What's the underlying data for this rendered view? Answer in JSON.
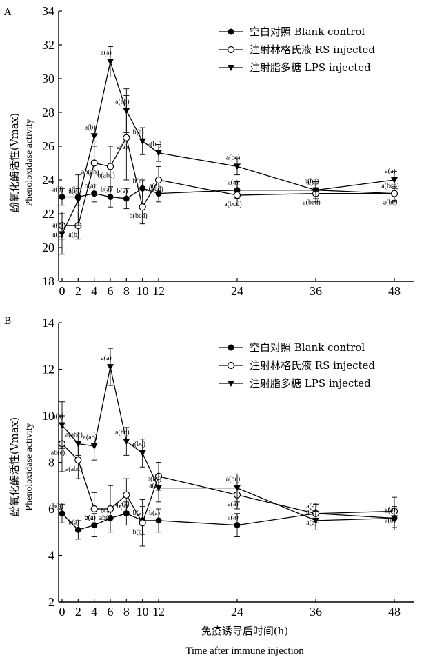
{
  "figure": {
    "xlabel_cn": "免疫诱导后时间(h)",
    "xlabel_en": "Time after immune injection"
  },
  "chart_data": [
    {
      "type": "line",
      "panel": "A",
      "ylabel_cn": "酚氧化酶活性(Vmax)",
      "ylabel_en": "Phenoloxidase activity",
      "xlabel": "",
      "ylim": [
        18,
        34
      ],
      "yticks": [
        18,
        20,
        22,
        24,
        26,
        28,
        30,
        32,
        34
      ],
      "xticks": [
        0,
        2,
        4,
        6,
        8,
        10,
        12,
        24,
        36,
        48
      ],
      "legend_position": "top-right",
      "grid": false,
      "series": [
        {
          "name": "空白对照 Blank control",
          "marker": "filled-circle",
          "x": [
            0,
            2,
            4,
            6,
            8,
            10,
            12,
            24,
            36,
            48
          ],
          "y": [
            23.0,
            23.0,
            23.2,
            23.0,
            22.9,
            23.5,
            23.2,
            23.4,
            23.4,
            23.2
          ],
          "err": [
            0.5,
            0.5,
            0.5,
            0.6,
            0.6,
            0.5,
            0.5,
            0.5,
            0.4,
            0.4
          ],
          "labels": [
            "a(d)",
            "a(b)",
            "b(a)",
            "b(a)",
            "b(a)",
            "b(a)",
            "a(a)",
            "a(a)",
            "a(a)",
            "a(bcd)"
          ]
        },
        {
          "name": "注射林格氏液 RS injected",
          "marker": "open-circle",
          "x": [
            0,
            2,
            4,
            6,
            8,
            10,
            12,
            24,
            36,
            48
          ],
          "y": [
            21.3,
            21.3,
            25.0,
            24.8,
            26.5,
            22.4,
            24.0,
            23.1,
            23.2,
            23.2
          ],
          "err": [
            0.8,
            0.8,
            1.3,
            1.2,
            2.5,
            1.0,
            0.8,
            0.6,
            0.5,
            0.5
          ],
          "labels": [
            "a(c)",
            "a(b)",
            "ab(ab)",
            "b(abc)",
            "a(a)",
            "b(bcd)",
            "a(bcd)",
            "a(bcd)",
            "a(bcd)",
            "a(bc)"
          ]
        },
        {
          "name": "注射脂多糖 LPS injected",
          "marker": "filled-triangle-down",
          "x": [
            0,
            2,
            4,
            6,
            8,
            10,
            12,
            24,
            36,
            48
          ],
          "y": [
            20.8,
            22.8,
            26.6,
            31.0,
            28.1,
            26.3,
            25.6,
            24.8,
            23.4,
            24.0
          ],
          "err": [
            1.2,
            1.5,
            0.6,
            0.9,
            1.3,
            0.8,
            0.5,
            0.5,
            0.5,
            0.5
          ],
          "labels": [
            "a(c)",
            "a(c)",
            "a(b)",
            "a(a)",
            "a(ab)",
            "b(a)",
            "a(bc)",
            "a(bc)",
            "a(bc)",
            "a(a)"
          ]
        }
      ]
    },
    {
      "type": "line",
      "panel": "B",
      "ylabel_cn": "酚氧化酶活性(Vmax)",
      "ylabel_en": "Phenoloxidase activity",
      "xlabel": "",
      "ylim": [
        2,
        14
      ],
      "yticks": [
        2,
        4,
        6,
        8,
        10,
        12,
        14
      ],
      "xticks": [
        0,
        2,
        4,
        6,
        8,
        10,
        12,
        24,
        36,
        48
      ],
      "legend_position": "top-right",
      "grid": false,
      "series": [
        {
          "name": "空白对照 Blank control",
          "marker": "filled-circle",
          "x": [
            0,
            2,
            4,
            6,
            8,
            10,
            12,
            24,
            36,
            48
          ],
          "y": [
            5.8,
            5.1,
            5.3,
            5.6,
            5.8,
            5.5,
            5.5,
            5.3,
            5.8,
            5.6
          ],
          "err": [
            0.4,
            0.4,
            0.5,
            0.5,
            0.5,
            0.6,
            0.5,
            0.5,
            0.4,
            0.4
          ],
          "labels": [
            "b(a)",
            "b(a)",
            "b(a)",
            "b(a)",
            "b(a)",
            "b(a)",
            "b(a)",
            "a(a)",
            "a(a)",
            "a(a)"
          ]
        },
        {
          "name": "注射林格氏液 RS injected",
          "marker": "open-circle",
          "x": [
            0,
            2,
            4,
            6,
            8,
            10,
            12,
            24,
            36,
            48
          ],
          "y": [
            8.8,
            8.1,
            6.0,
            6.0,
            6.6,
            5.4,
            7.4,
            6.6,
            5.8,
            5.9
          ],
          "err": [
            1.2,
            0.8,
            0.7,
            1.0,
            0.7,
            1.0,
            0.6,
            0.6,
            0.4,
            0.6
          ],
          "labels": [
            "ab(e)",
            "a(abc)",
            "b(a)",
            "ab(a)",
            "ab(a)",
            "b(a)",
            "a(a)",
            "a(a)",
            "a(a)",
            "a(b)"
          ]
        },
        {
          "name": "注射脂多糖 LPS injected",
          "marker": "filled-triangle-down",
          "x": [
            0,
            2,
            4,
            6,
            8,
            10,
            12,
            24,
            36,
            48
          ],
          "y": [
            9.6,
            8.8,
            8.7,
            12.1,
            8.9,
            8.4,
            6.9,
            6.9,
            5.5,
            5.6
          ],
          "err": [
            1.0,
            0.5,
            0.6,
            0.8,
            0.6,
            0.6,
            0.6,
            0.6,
            0.4,
            0.5
          ],
          "labels": [
            "a(a)",
            "a(abc)",
            "a(ab)",
            "a(a)",
            "a(bc)",
            "a(bc)",
            "a(bc)",
            "a(bc)",
            "a(c)",
            "a(a)"
          ]
        }
      ]
    }
  ]
}
